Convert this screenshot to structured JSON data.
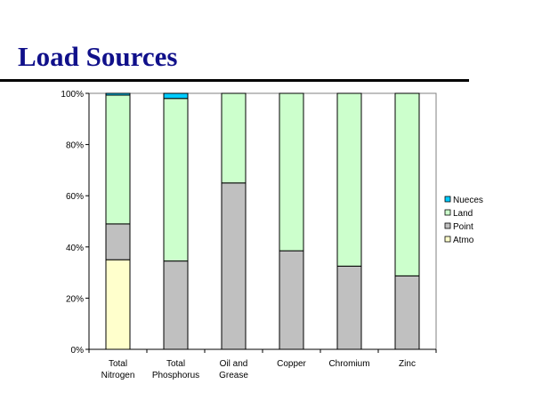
{
  "slide": {
    "title": "Load Sources"
  },
  "chart_data": {
    "type": "bar",
    "stacked": "percent",
    "categories": [
      [
        "Total",
        "Nitrogen"
      ],
      [
        "Total",
        "Phosphorus"
      ],
      [
        "Oil and",
        "Grease"
      ],
      [
        "Copper"
      ],
      [
        "Chromium"
      ],
      [
        "Zinc"
      ]
    ],
    "series": [
      {
        "name": "Atmo",
        "color": "#FFFFCC",
        "values": [
          35,
          0,
          0,
          0,
          0,
          0
        ]
      },
      {
        "name": "Point",
        "color": "#C0C0C0",
        "values": [
          14,
          34.5,
          65,
          38.5,
          32.5,
          28.7
        ]
      },
      {
        "name": "Land",
        "color": "#CCFFCC",
        "values": [
          50.3,
          63.5,
          35,
          61.5,
          67.5,
          71.3
        ]
      },
      {
        "name": "Nueces",
        "color": "#00CCFF",
        "values": [
          0.7,
          2,
          0,
          0,
          0,
          0
        ]
      }
    ],
    "yticks": [
      "0%",
      "20%",
      "40%",
      "60%",
      "80%",
      "100%"
    ],
    "ylim": [
      0,
      100
    ],
    "grid": false,
    "legend": "right",
    "legend_order": [
      "Nueces",
      "Land",
      "Point",
      "Atmo"
    ]
  }
}
